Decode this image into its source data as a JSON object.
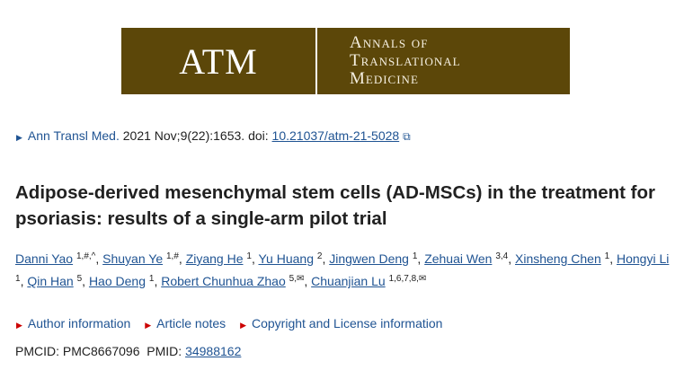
{
  "logo": {
    "abbr": "ATM",
    "line1": "Annals of",
    "line2": "Translational",
    "line3": "Medicine",
    "color": "#5c4709"
  },
  "citation": {
    "journal": "Ann Transl Med.",
    "details": " 2021 Nov;9(22):1653. doi: ",
    "doi": "10.21037/atm-21-5028",
    "icon": "external-link-icon"
  },
  "title": "Adipose-derived mesenchymal stem cells (AD-MSCs) in the treatment for psoriasis: results of a single-arm pilot trial",
  "authors": [
    {
      "name": "Danni Yao",
      "sup": "1,#,^"
    },
    {
      "name": "Shuyan Ye",
      "sup": "1,#"
    },
    {
      "name": "Ziyang He",
      "sup": "1"
    },
    {
      "name": "Yu Huang",
      "sup": "2"
    },
    {
      "name": "Jingwen Deng",
      "sup": "1"
    },
    {
      "name": "Zehuai Wen",
      "sup": "3,4"
    },
    {
      "name": "Xinsheng Chen",
      "sup": "1"
    },
    {
      "name": "Hongyi Li",
      "sup": "1"
    },
    {
      "name": "Qin Han",
      "sup": "5"
    },
    {
      "name": "Hao Deng",
      "sup": "1"
    },
    {
      "name": "Robert Chunhua Zhao",
      "sup": "5,✉"
    },
    {
      "name": "Chuanjian Lu",
      "sup": "1,6,7,8,✉"
    }
  ],
  "notes": [
    "Author information",
    "Article notes",
    "Copyright and License information"
  ],
  "ids": {
    "pmcid": "PMCID: PMC8667096  PMID: ",
    "pmid": "34988162"
  }
}
